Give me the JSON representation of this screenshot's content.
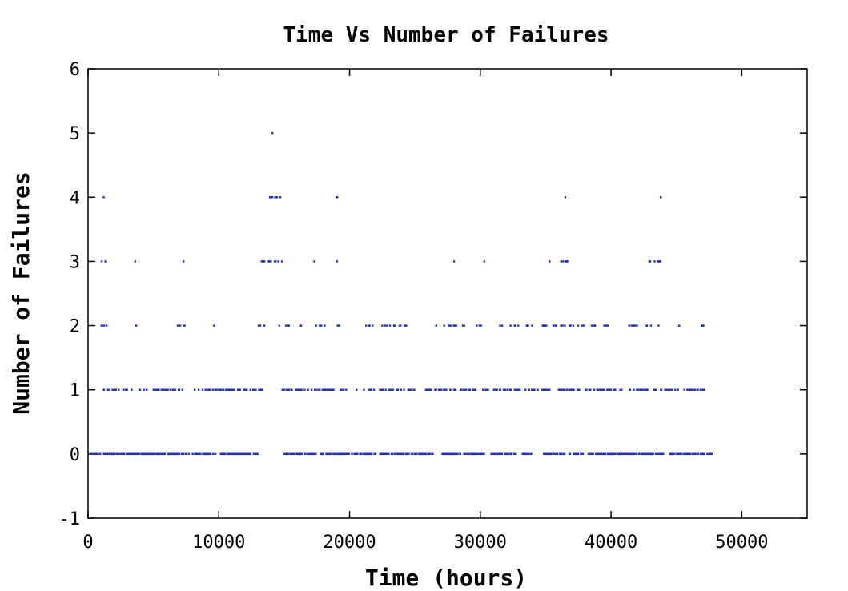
{
  "chart_data": {
    "type": "scatter",
    "title": "Time Vs Number of Failures",
    "xlabel": "Time (hours)",
    "ylabel": "Number of Failures",
    "xlim": [
      0,
      55000
    ],
    "ylim": [
      -1,
      6
    ],
    "xticks": [
      0,
      10000,
      20000,
      30000,
      40000,
      50000
    ],
    "yticks": [
      -1,
      0,
      1,
      2,
      3,
      4,
      5,
      6
    ],
    "xtick_labels": [
      "0",
      "10000",
      "20000",
      "30000",
      "40000",
      "50000"
    ],
    "ytick_labels": [
      "-1",
      "0",
      "1",
      "2",
      "3",
      "4",
      "5",
      "6"
    ],
    "grid": false,
    "legend": "none",
    "marker_color": "#1a2fd6",
    "point_clusters": [
      {
        "y": 0,
        "ranges": [
          [
            200,
            13000
          ],
          [
            15000,
            17500
          ],
          [
            17800,
            22000
          ],
          [
            22300,
            26500
          ],
          [
            27100,
            30500
          ],
          [
            30800,
            32800
          ],
          [
            33200,
            34000
          ],
          [
            34800,
            36500
          ],
          [
            36800,
            44200
          ],
          [
            44500,
            47800
          ]
        ]
      },
      {
        "y": 1,
        "ranges": [
          [
            1000,
            13300
          ],
          [
            14800,
            25000
          ],
          [
            25800,
            35500
          ],
          [
            35800,
            43500
          ],
          [
            43800,
            47500
          ]
        ]
      },
      {
        "y": 2,
        "ranges": [
          [
            1000,
            1900
          ],
          [
            3500,
            3800
          ],
          [
            6800,
            7500
          ],
          [
            9500,
            9800
          ],
          [
            13000,
            13500
          ],
          [
            14600,
            15500
          ],
          [
            16200,
            16300
          ],
          [
            17200,
            18100
          ],
          [
            19000,
            19500
          ],
          [
            21000,
            22000
          ],
          [
            22500,
            24800
          ],
          [
            26500,
            28800
          ],
          [
            29600,
            30200
          ],
          [
            31500,
            34000
          ],
          [
            34500,
            38100
          ],
          [
            38500,
            39800
          ],
          [
            41200,
            42200
          ],
          [
            42600,
            43100
          ],
          [
            43500,
            43900
          ],
          [
            45200,
            45300
          ],
          [
            46400,
            47200
          ]
        ]
      },
      {
        "y": 3,
        "ranges": [
          [
            1000,
            1400
          ],
          [
            13200,
            14900
          ],
          [
            19000,
            19400
          ],
          [
            36100,
            36800
          ],
          [
            42700,
            43000
          ],
          [
            43300,
            44100
          ]
        ]
      },
      {
        "y": 4,
        "ranges": [
          [
            13900,
            14600
          ],
          [
            19000,
            19400
          ]
        ]
      }
    ],
    "isolated_points": [
      {
        "x": 1200,
        "y": 4
      },
      {
        "x": 3600,
        "y": 3
      },
      {
        "x": 7300,
        "y": 3
      },
      {
        "x": 14700,
        "y": 4
      },
      {
        "x": 17300,
        "y": 3
      },
      {
        "x": 28000,
        "y": 3
      },
      {
        "x": 30300,
        "y": 3
      },
      {
        "x": 35300,
        "y": 3
      },
      {
        "x": 36500,
        "y": 4
      },
      {
        "x": 43800,
        "y": 4
      },
      {
        "x": 14100,
        "y": 5
      }
    ]
  }
}
